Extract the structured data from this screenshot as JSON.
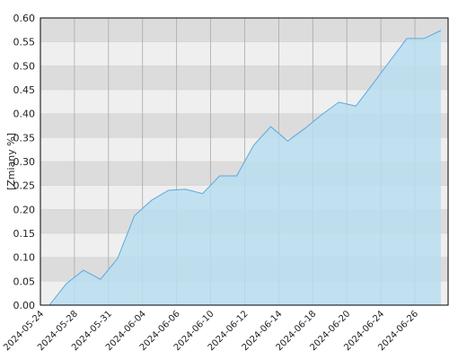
{
  "chart_data": {
    "type": "area",
    "y_label": "[Zmiany %]",
    "categories": [
      "2024-05-24",
      null,
      "2024-05-28",
      null,
      "2024-05-31",
      null,
      "2024-06-04",
      null,
      "2024-06-06",
      null,
      "2024-06-10",
      null,
      "2024-06-12",
      null,
      "2024-06-14",
      null,
      "2024-06-18",
      null,
      "2024-06-20",
      null,
      "2024-06-24",
      null,
      "2024-06-26",
      null
    ],
    "values": [
      0.0,
      0.045,
      0.073,
      0.054,
      0.097,
      0.187,
      0.219,
      0.24,
      0.242,
      0.233,
      0.27,
      0.27,
      0.334,
      0.373,
      0.343,
      0.369,
      0.398,
      0.424,
      0.416,
      0.462,
      0.51,
      0.557,
      0.557,
      0.574
    ],
    "color": "#5aa8e0",
    "fill": "#b9def0",
    "ylim": [
      0,
      0.6
    ],
    "yticks": [
      {
        "value": 0,
        "label": "0.00"
      },
      0.05,
      {
        "value": 0.1,
        "label": "0.10"
      },
      0.15,
      {
        "value": 0.2,
        "label": "0.20"
      },
      0.25,
      {
        "value": 0.3,
        "label": "0.30"
      },
      0.35,
      {
        "value": 0.4,
        "label": "0.40"
      },
      0.45,
      {
        "value": 0.5,
        "label": "0.50"
      },
      0.55,
      {
        "value": 0.6,
        "label": "0.60"
      }
    ],
    "grid": true
  }
}
